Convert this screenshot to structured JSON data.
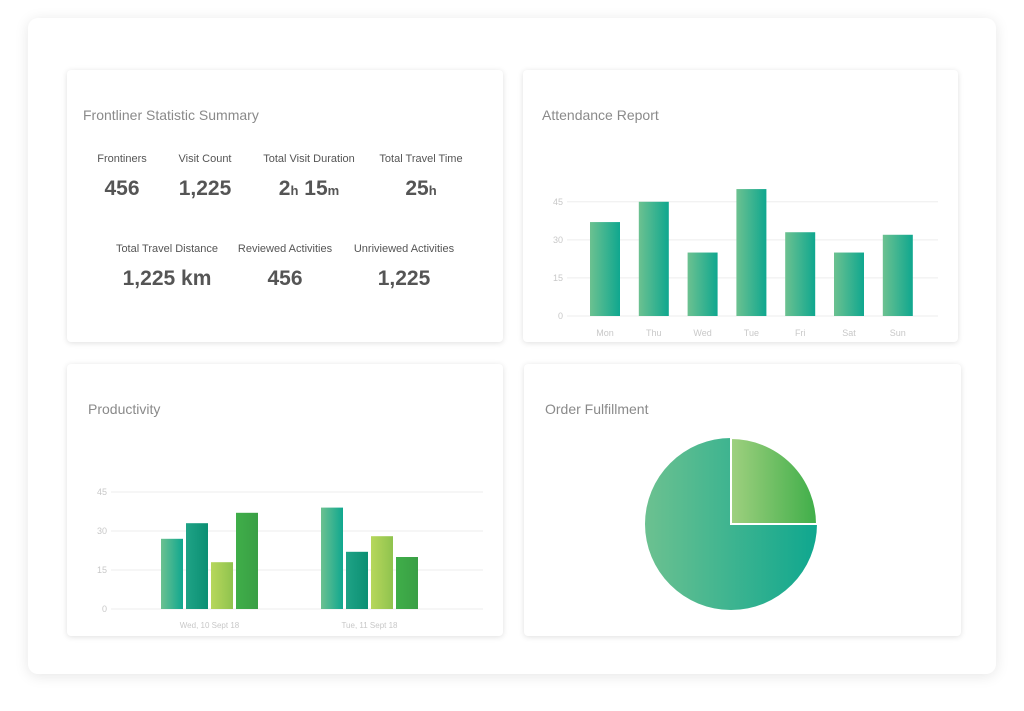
{
  "colors": {
    "teal": "#0fa78f",
    "green_light": "#6cc190",
    "lime": "#a6cd57",
    "green_dark": "#3fae49",
    "gridline": "#eeeeee",
    "axis_text": "#c8c8c8"
  },
  "summary": {
    "title": "Frontliner Statistic Summary",
    "row1": [
      {
        "label": "Frontiners",
        "value": "456"
      },
      {
        "label": "Visit Count",
        "value": "1,225"
      },
      {
        "label": "Total Visit Duration",
        "value": "2",
        "unit": "h",
        "value2": "15",
        "unit2": "m"
      },
      {
        "label": "Total Travel Time",
        "value": "25",
        "unit": "h"
      }
    ],
    "row2": [
      {
        "label": "Total Travel Distance",
        "value": "1,225 km"
      },
      {
        "label": "Reviewed Activities",
        "value": "456"
      },
      {
        "label": "Unriviewed Activities",
        "value": "1,225"
      }
    ]
  },
  "attendance": {
    "title": "Attendance Report",
    "chart_data": {
      "type": "bar",
      "categories": [
        "Mon",
        "Thu",
        "Wed",
        "Tue",
        "Fri",
        "Sat",
        "Sun"
      ],
      "values": [
        37,
        45,
        25,
        50,
        33,
        25,
        32
      ],
      "yticks": [
        0,
        15,
        30,
        45
      ],
      "ylim": [
        0,
        52
      ],
      "grid": true
    }
  },
  "productivity": {
    "title": "Productivity",
    "chart_data": {
      "type": "bar",
      "categories": [
        "Wed, 10 Sept 18",
        "Tue, 11 Sept 18"
      ],
      "series": [
        {
          "values": [
            27,
            39
          ]
        },
        {
          "values": [
            33,
            22
          ]
        },
        {
          "values": [
            18,
            28
          ]
        },
        {
          "values": [
            37,
            20
          ]
        }
      ],
      "yticks": [
        0,
        15,
        30,
        45
      ],
      "ylim": [
        0,
        45
      ],
      "grid": true
    }
  },
  "fulfillment": {
    "title": "Order Fulfillment",
    "chart_data": {
      "type": "pie",
      "values": [
        75,
        25
      ]
    }
  }
}
